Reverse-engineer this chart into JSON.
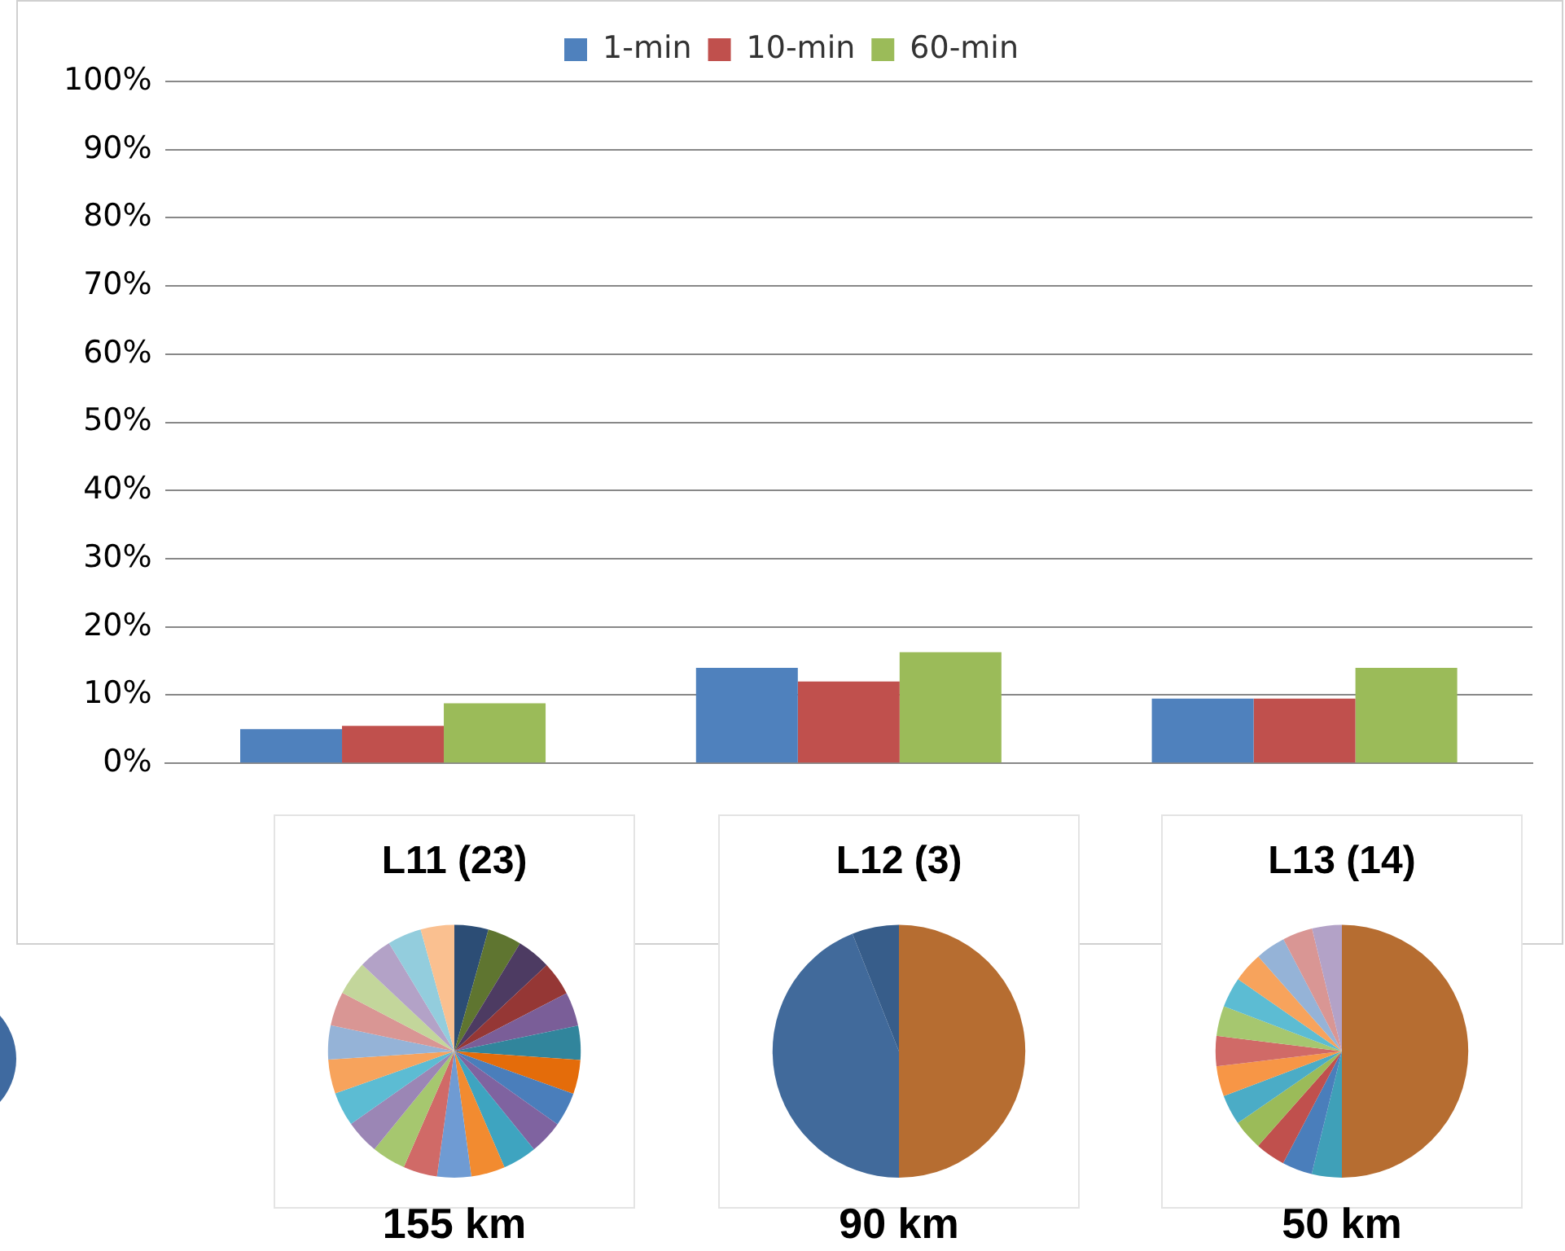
{
  "chart_data": [
    {
      "type": "bar",
      "categories": [
        null,
        null,
        null
      ],
      "series": [
        {
          "name": "1-min",
          "color": "#4f81bd",
          "values": [
            5,
            14,
            9.5
          ]
        },
        {
          "name": "10-min",
          "color": "#c0504d",
          "values": [
            5.5,
            12,
            9.5
          ]
        },
        {
          "name": "60-min",
          "color": "#9bbb59",
          "values": [
            8.8,
            16.3,
            14
          ]
        }
      ],
      "ylim": [
        0,
        100
      ],
      "yticks": [
        {
          "value": 0,
          "label": "0%"
        },
        {
          "value": 10,
          "label": "10%"
        },
        {
          "value": 20,
          "label": "20%"
        },
        {
          "value": 30,
          "label": "30%"
        },
        {
          "value": 40,
          "label": "40%"
        },
        {
          "value": 50,
          "label": "50%"
        },
        {
          "value": 60,
          "label": "60%"
        },
        {
          "value": 70,
          "label": "70%"
        },
        {
          "value": 80,
          "label": "80%"
        },
        {
          "value": 90,
          "label": "90%"
        },
        {
          "value": 100,
          "label": "100%"
        }
      ],
      "grid": "y",
      "legend": "top"
    },
    {
      "type": "pie",
      "title": "L11 (23)",
      "annotations": [
        "155 km"
      ],
      "categories": [
        null,
        null,
        null,
        null,
        null,
        null,
        null,
        null,
        null,
        null,
        null,
        null,
        null,
        null,
        null,
        null,
        null,
        null,
        null,
        null,
        null,
        null,
        null
      ],
      "values": [
        4.35,
        4.35,
        4.35,
        4.35,
        4.35,
        4.35,
        4.35,
        4.35,
        4.35,
        4.35,
        4.35,
        4.35,
        4.35,
        4.35,
        4.35,
        4.35,
        4.35,
        4.35,
        4.35,
        4.35,
        4.35,
        4.35,
        4.3
      ],
      "colors": [
        "#2c4d75",
        "#5f7530",
        "#4d3b62",
        "#953735",
        "#7a5e98",
        "#31859c",
        "#e46c0a",
        "#4a7ebb",
        "#7f63a0",
        "#3ea4c0",
        "#f28b30",
        "#6f9bd3",
        "#d06a67",
        "#a6c76f",
        "#9b86b5",
        "#5cbcd3",
        "#f7a35c",
        "#95b3d7",
        "#d99694",
        "#c3d69b",
        "#b3a2c7",
        "#93cddd",
        "#fac090"
      ]
    },
    {
      "type": "pie",
      "title": "L12 (3)",
      "annotations": [
        "90 km"
      ],
      "categories": [
        null,
        null,
        null
      ],
      "values": [
        50,
        44,
        6
      ],
      "colors": [
        "#b66d31",
        "#416a9b",
        "#375d8a"
      ]
    },
    {
      "type": "pie",
      "title": "L13 (14)",
      "annotations": [
        "50 km"
      ],
      "categories": [
        null,
        null,
        null,
        null,
        null,
        null,
        null,
        null,
        null,
        null,
        null,
        null,
        null,
        null
      ],
      "values": [
        50,
        3.85,
        3.85,
        3.85,
        3.85,
        3.85,
        3.85,
        3.85,
        3.85,
        3.85,
        3.85,
        3.85,
        3.85,
        3.8
      ],
      "colors": [
        "#b66d31",
        "#3fa0b8",
        "#4a7ebb",
        "#c0504d",
        "#9bbb59",
        "#4bacc6",
        "#f79646",
        "#d06a67",
        "#a6c76f",
        "#5cbcd3",
        "#f7a35c",
        "#95b3d7",
        "#d99694",
        "#b3a2c7"
      ]
    }
  ]
}
